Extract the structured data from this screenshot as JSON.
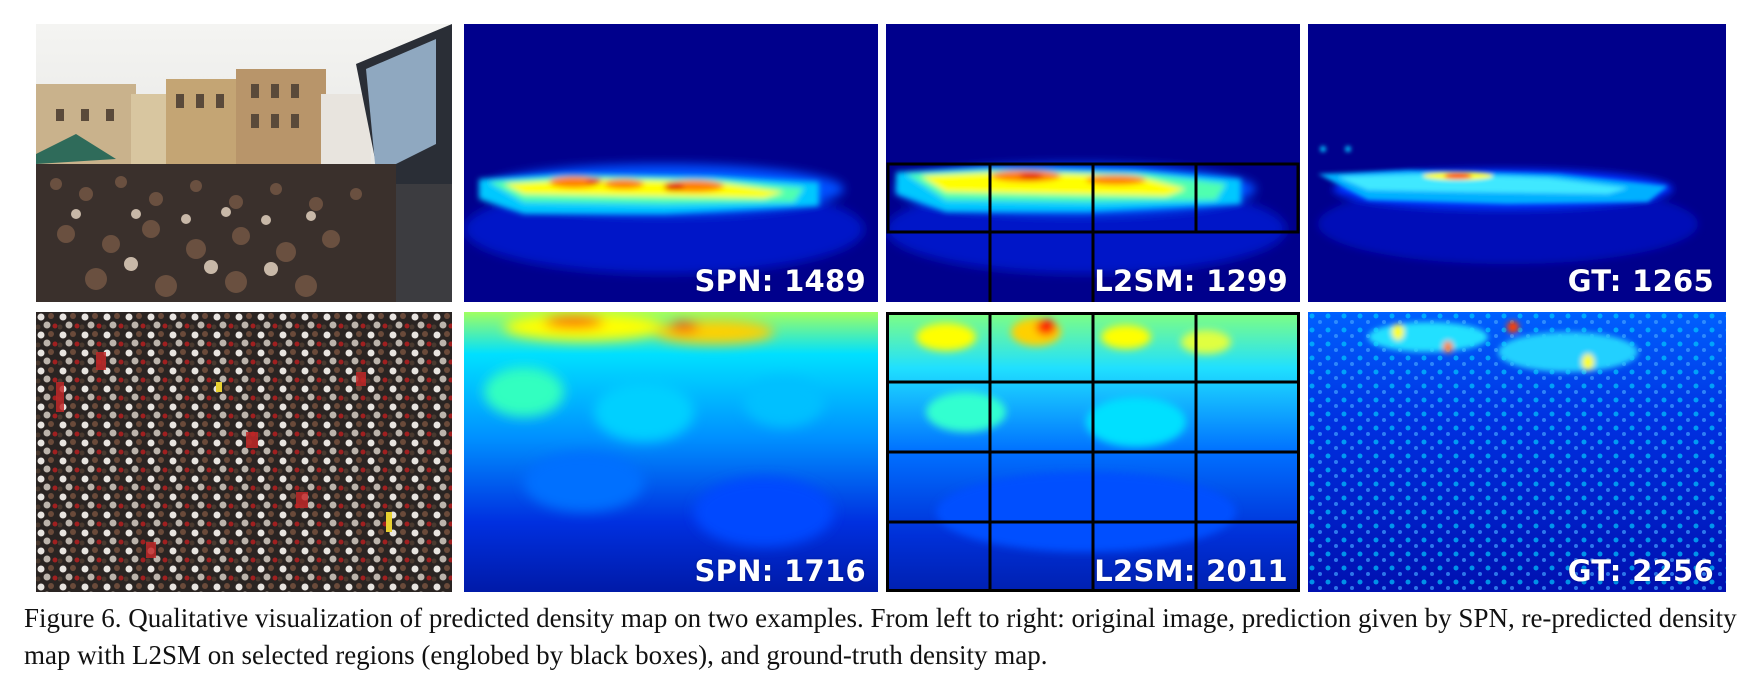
{
  "rows": [
    {
      "original_image": "crowd-photo-plaza",
      "panels": [
        {
          "method": "SPN",
          "label": "SPN: 1489"
        },
        {
          "method": "L2SM",
          "label": "L2SM: 1299"
        },
        {
          "method": "GT",
          "label": "GT: 1265"
        }
      ]
    },
    {
      "original_image": "crowd-photo-dense",
      "panels": [
        {
          "method": "SPN",
          "label": "SPN: 1716"
        },
        {
          "method": "L2SM",
          "label": "L2SM: 2011"
        },
        {
          "method": "GT",
          "label": "GT: 2256"
        }
      ]
    }
  ],
  "colors": {
    "density_background": "#00008c",
    "colormap": [
      "#00008c",
      "#0020ff",
      "#00c8ff",
      "#50ffb0",
      "#ffff00",
      "#ff8000",
      "#e00000"
    ],
    "region_box": "#000000"
  },
  "caption": "Figure 6. Qualitative visualization of predicted density map on two examples. From left to right: original image, prediction given by SPN, re-predicted density map with L2SM on selected regions (englobed by black boxes), and ground-truth density map."
}
